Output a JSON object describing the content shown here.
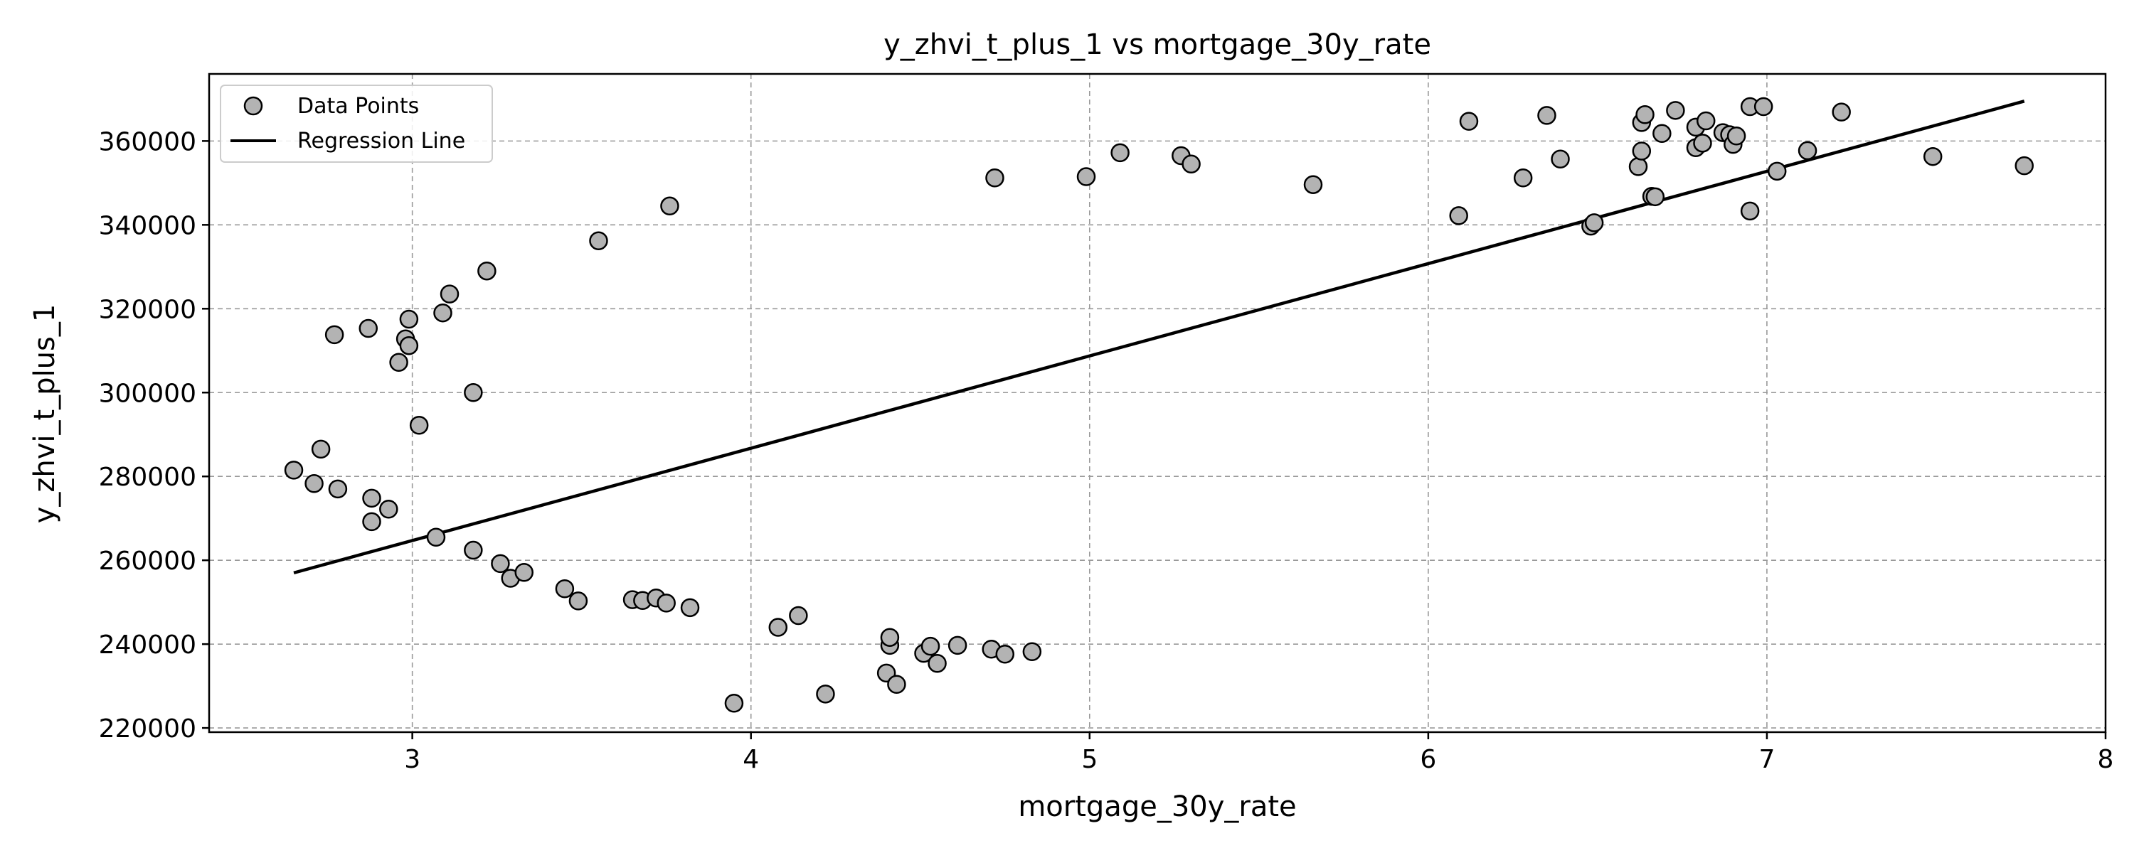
{
  "chart_data": {
    "type": "scatter",
    "title": "y_zhvi_t_plus_1 vs mortgage_30y_rate",
    "xlabel": "mortgage_30y_rate",
    "ylabel": "y_zhvi_t_plus_1",
    "xlim": [
      2.4,
      8.0
    ],
    "ylim": [
      219000,
      376000
    ],
    "xticks": [
      3,
      4,
      5,
      6,
      7,
      8
    ],
    "yticks": [
      220000,
      240000,
      260000,
      280000,
      300000,
      320000,
      340000,
      360000
    ],
    "grid": true,
    "legend_position": "top-left",
    "legend": [
      "Data Points",
      "Regression Line"
    ],
    "colors": {
      "point_fill": "#b3b3b3",
      "point_edge": "#000000",
      "line": "#000000",
      "grid": "#999999"
    },
    "series": [
      {
        "name": "Data Points",
        "type": "scatter",
        "points": [
          [
            2.65,
            281500
          ],
          [
            2.71,
            278300
          ],
          [
            2.73,
            286500
          ],
          [
            2.78,
            277000
          ],
          [
            2.77,
            313800
          ],
          [
            2.87,
            315300
          ],
          [
            2.88,
            274800
          ],
          [
            2.88,
            269200
          ],
          [
            2.93,
            272200
          ],
          [
            2.96,
            307200
          ],
          [
            2.98,
            312800
          ],
          [
            2.99,
            317500
          ],
          [
            2.99,
            311200
          ],
          [
            3.02,
            292200
          ],
          [
            3.07,
            265500
          ],
          [
            3.09,
            319000
          ],
          [
            3.11,
            323500
          ],
          [
            3.18,
            300000
          ],
          [
            3.18,
            262400
          ],
          [
            3.22,
            329000
          ],
          [
            3.26,
            259200
          ],
          [
            3.29,
            255700
          ],
          [
            3.33,
            257100
          ],
          [
            3.45,
            253200
          ],
          [
            3.49,
            250300
          ],
          [
            3.55,
            336200
          ],
          [
            3.65,
            250600
          ],
          [
            3.68,
            250400
          ],
          [
            3.72,
            251000
          ],
          [
            3.75,
            249800
          ],
          [
            3.76,
            344500
          ],
          [
            3.82,
            248700
          ],
          [
            3.95,
            225900
          ],
          [
            4.08,
            244000
          ],
          [
            4.14,
            246800
          ],
          [
            4.22,
            228100
          ],
          [
            4.4,
            233100
          ],
          [
            4.41,
            239700
          ],
          [
            4.41,
            241600
          ],
          [
            4.43,
            230400
          ],
          [
            4.51,
            237800
          ],
          [
            4.53,
            239500
          ],
          [
            4.55,
            235400
          ],
          [
            4.61,
            239700
          ],
          [
            4.71,
            238800
          ],
          [
            4.72,
            351200
          ],
          [
            4.75,
            237600
          ],
          [
            4.83,
            238200
          ],
          [
            4.99,
            351500
          ],
          [
            5.09,
            357200
          ],
          [
            5.27,
            356500
          ],
          [
            5.3,
            354500
          ],
          [
            5.66,
            349600
          ],
          [
            6.09,
            342200
          ],
          [
            6.12,
            364700
          ],
          [
            6.28,
            351200
          ],
          [
            6.35,
            366100
          ],
          [
            6.39,
            355700
          ],
          [
            6.48,
            339700
          ],
          [
            6.49,
            340500
          ],
          [
            6.62,
            353900
          ],
          [
            6.63,
            357600
          ],
          [
            6.63,
            364400
          ],
          [
            6.64,
            366300
          ],
          [
            6.66,
            346800
          ],
          [
            6.67,
            346700
          ],
          [
            6.69,
            361800
          ],
          [
            6.73,
            367300
          ],
          [
            6.79,
            358400
          ],
          [
            6.79,
            363300
          ],
          [
            6.81,
            359500
          ],
          [
            6.82,
            364800
          ],
          [
            6.87,
            362000
          ],
          [
            6.89,
            361500
          ],
          [
            6.9,
            359200
          ],
          [
            6.91,
            361200
          ],
          [
            6.95,
            343300
          ],
          [
            6.95,
            368200
          ],
          [
            6.99,
            368200
          ],
          [
            7.03,
            352800
          ],
          [
            7.12,
            357700
          ],
          [
            7.22,
            366900
          ],
          [
            7.49,
            356300
          ],
          [
            7.76,
            354100
          ]
        ]
      },
      {
        "name": "Regression Line",
        "type": "line",
        "points": [
          [
            2.65,
            257000
          ],
          [
            7.76,
            369500
          ]
        ]
      }
    ]
  }
}
